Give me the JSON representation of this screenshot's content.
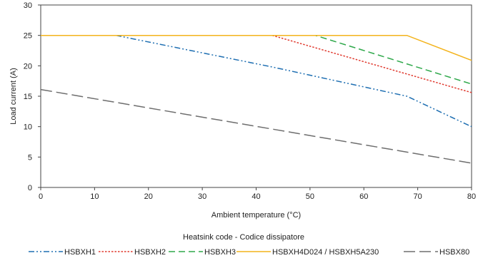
{
  "chart_data": {
    "type": "line",
    "xlabel": "Ambient temperature (°C)",
    "ylabel": "Load current (A)",
    "xlim": [
      0,
      80
    ],
    "ylim": [
      0,
      30
    ],
    "x_ticks": [
      0,
      10,
      20,
      30,
      40,
      50,
      60,
      70,
      80
    ],
    "y_ticks": [
      0,
      5,
      10,
      15,
      20,
      25,
      30
    ],
    "grid": false,
    "legend_title": "Heatsink code - Codice dissipatore",
    "legend_position": "bottom",
    "series": [
      {
        "name": "HSBXH1",
        "color": "#1f6fb2",
        "dash": "dash-dot-dot",
        "points": [
          [
            0,
            25
          ],
          [
            14,
            25
          ],
          [
            43,
            19.8
          ],
          [
            68,
            15
          ],
          [
            80,
            10
          ]
        ]
      },
      {
        "name": "HSBXH2",
        "color": "#e03a2f",
        "dash": "dot",
        "points": [
          [
            0,
            25
          ],
          [
            43,
            25
          ],
          [
            80,
            15.6
          ]
        ]
      },
      {
        "name": "HSBXH3",
        "color": "#2ea84a",
        "dash": "dash",
        "points": [
          [
            0,
            25
          ],
          [
            51,
            25
          ],
          [
            80,
            17
          ]
        ]
      },
      {
        "name": "HSBXH4D024 / HSBXH5A230",
        "color": "#f3b31b",
        "dash": "solid",
        "points": [
          [
            0,
            25
          ],
          [
            68,
            25
          ],
          [
            80,
            20.9
          ]
        ]
      },
      {
        "name": "HSBX80",
        "color": "#6e6e6e",
        "dash": "long-dash",
        "points": [
          [
            0,
            16.1
          ],
          [
            80,
            4
          ]
        ]
      }
    ]
  }
}
